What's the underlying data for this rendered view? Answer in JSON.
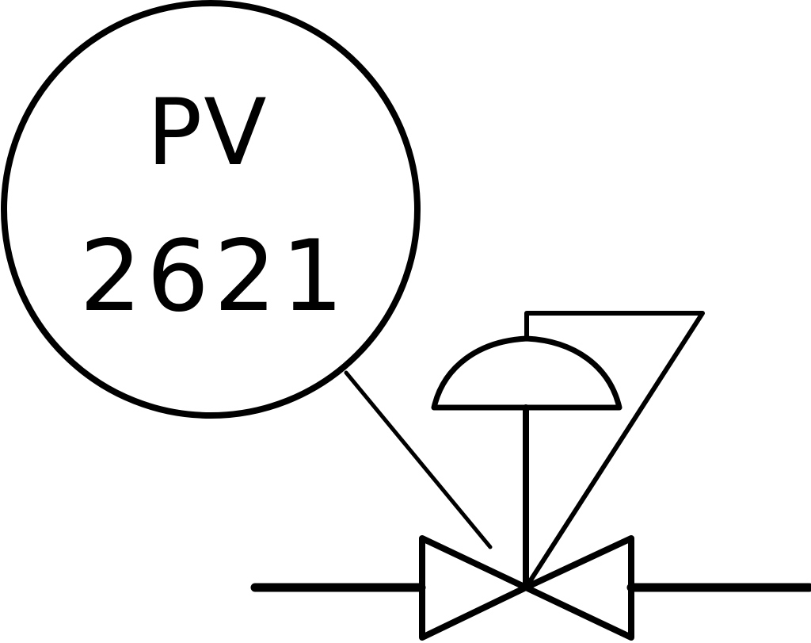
{
  "instrument": {
    "letters": "PV",
    "number": "2621"
  },
  "colors": {
    "line": "#000000",
    "background": "#ffffff"
  }
}
